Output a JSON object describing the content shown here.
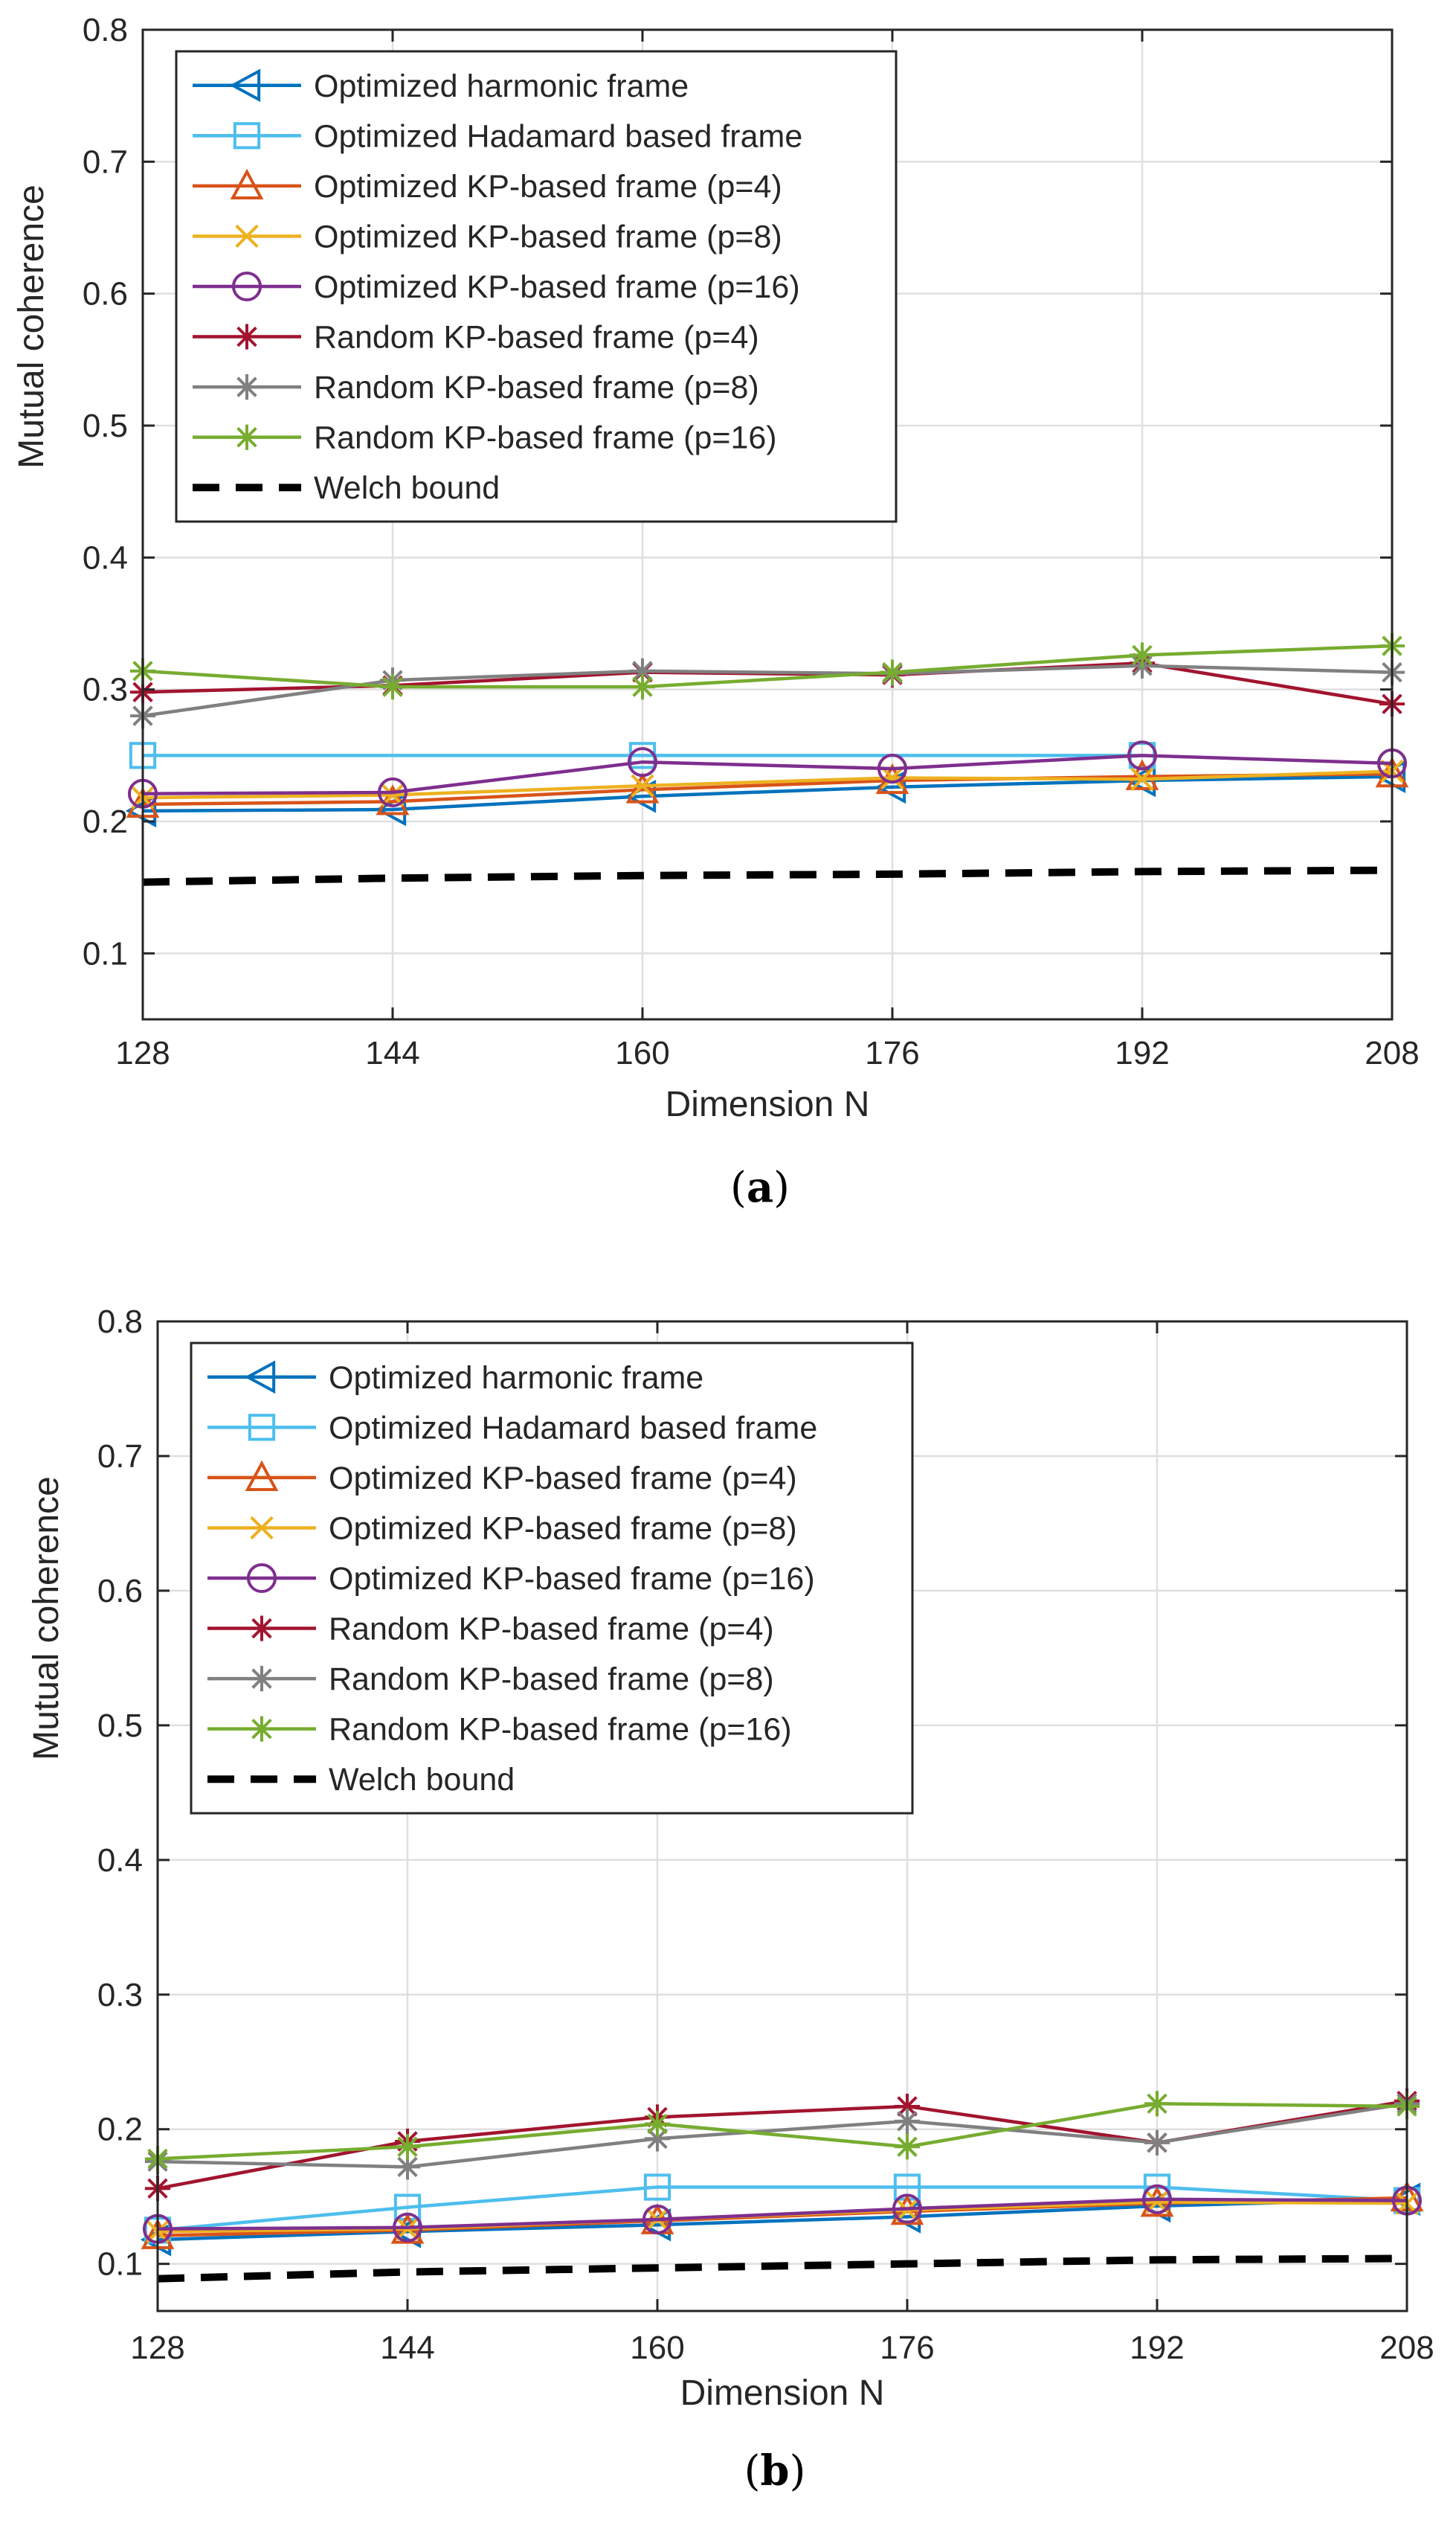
{
  "colors": {
    "harmonic": "#0072BD",
    "hadamard": "#4DBEEE",
    "kp4": "#D95319",
    "kp8": "#EDB120",
    "kp16": "#7E2F8E",
    "rand4": "#A2142F",
    "rand8": "#808080",
    "rand16": "#77AC30",
    "welch": "#000000"
  },
  "chart_data": [
    {
      "type": "line",
      "panel": "a",
      "caption_open": "(",
      "caption_letter": "a",
      "caption_close": ")",
      "xlabel": "Dimension N",
      "ylabel": "Mutual coherence",
      "x": [
        128,
        144,
        160,
        176,
        192,
        208
      ],
      "xlim": [
        128,
        208
      ],
      "ylim": [
        0.05,
        0.8
      ],
      "yticks": [
        0.1,
        0.2,
        0.3,
        0.4,
        0.5,
        0.6,
        0.7,
        0.8
      ],
      "xticks": [
        128,
        144,
        160,
        176,
        192,
        208
      ],
      "grid": true,
      "legend_position": "top-left",
      "series": [
        {
          "key": "harmonic",
          "name": "Optimized harmonic frame",
          "marker": "triangle-left",
          "values": [
            0.208,
            0.209,
            0.219,
            0.226,
            0.231,
            0.234
          ]
        },
        {
          "key": "hadamard",
          "name": "Optimized Hadamard based frame",
          "marker": "square",
          "values": [
            0.25,
            null,
            0.25,
            null,
            0.25,
            null
          ]
        },
        {
          "key": "kp4",
          "name": "Optimized KP-based frame (p=4)",
          "marker": "triangle-up",
          "values": [
            0.213,
            0.215,
            0.224,
            0.231,
            0.234,
            0.236
          ]
        },
        {
          "key": "kp8",
          "name": "Optimized KP-based frame (p=8)",
          "marker": "x",
          "values": [
            0.218,
            0.22,
            0.227,
            0.233,
            0.232,
            0.238
          ]
        },
        {
          "key": "kp16",
          "name": "Optimized KP-based frame (p=16)",
          "marker": "circle",
          "values": [
            0.221,
            0.222,
            0.245,
            0.24,
            0.25,
            0.244
          ]
        },
        {
          "key": "rand4",
          "name": "Random KP-based frame (p=4)",
          "marker": "asterisk",
          "values": [
            0.298,
            0.303,
            0.313,
            0.311,
            0.32,
            0.289
          ]
        },
        {
          "key": "rand8",
          "name": "Random KP-based frame (p=8)",
          "marker": "asterisk",
          "values": [
            0.28,
            0.307,
            0.314,
            0.312,
            0.318,
            0.313
          ]
        },
        {
          "key": "rand16",
          "name": "Random KP-based frame (p=16)",
          "marker": "asterisk",
          "values": [
            0.314,
            0.302,
            0.302,
            0.313,
            0.326,
            0.333
          ]
        },
        {
          "key": "welch",
          "name": "Welch bound",
          "marker": "none",
          "dashed": true,
          "values": [
            0.154,
            0.157,
            0.159,
            0.16,
            0.162,
            0.163
          ]
        }
      ]
    },
    {
      "type": "line",
      "panel": "b",
      "caption_open": "(",
      "caption_letter": "b",
      "caption_close": ")",
      "xlabel": "Dimension N",
      "ylabel": "Mutual coherence",
      "x": [
        128,
        144,
        160,
        176,
        192,
        208
      ],
      "xlim": [
        128,
        208
      ],
      "ylim": [
        0.065,
        0.8
      ],
      "yticks": [
        0.1,
        0.2,
        0.3,
        0.4,
        0.5,
        0.6,
        0.7,
        0.8
      ],
      "xticks": [
        128,
        144,
        160,
        176,
        192,
        208
      ],
      "grid": true,
      "legend_position": "top-left",
      "series": [
        {
          "key": "harmonic",
          "name": "Optimized harmonic frame",
          "marker": "triangle-left",
          "values": [
            0.118,
            0.124,
            0.129,
            0.135,
            0.143,
            0.148
          ]
        },
        {
          "key": "hadamard",
          "name": "Optimized Hadamard based frame",
          "marker": "square",
          "values": [
            0.125,
            0.142,
            0.157,
            0.157,
            0.157,
            0.147
          ]
        },
        {
          "key": "kp4",
          "name": "Optimized KP-based frame (p=4)",
          "marker": "triangle-up",
          "values": [
            0.121,
            0.125,
            0.132,
            0.139,
            0.145,
            0.149
          ]
        },
        {
          "key": "kp8",
          "name": "Optimized KP-based frame (p=8)",
          "marker": "x",
          "values": [
            0.124,
            0.126,
            0.133,
            0.14,
            0.146,
            0.145
          ]
        },
        {
          "key": "kp16",
          "name": "Optimized KP-based frame (p=16)",
          "marker": "circle",
          "values": [
            0.126,
            0.127,
            0.133,
            0.141,
            0.148,
            0.147
          ]
        },
        {
          "key": "rand4",
          "name": "Random KP-based frame (p=4)",
          "marker": "asterisk",
          "values": [
            0.156,
            0.191,
            0.209,
            0.217,
            0.19,
            0.221
          ]
        },
        {
          "key": "rand8",
          "name": "Random KP-based frame (p=8)",
          "marker": "asterisk",
          "values": [
            0.176,
            0.172,
            0.193,
            0.206,
            0.19,
            0.219
          ]
        },
        {
          "key": "rand16",
          "name": "Random KP-based frame (p=16)",
          "marker": "asterisk",
          "values": [
            0.178,
            0.187,
            0.204,
            0.187,
            0.219,
            0.217
          ]
        },
        {
          "key": "welch",
          "name": "Welch bound",
          "marker": "none",
          "dashed": true,
          "values": [
            0.089,
            0.094,
            0.097,
            0.1,
            0.103,
            0.104
          ]
        }
      ]
    }
  ]
}
